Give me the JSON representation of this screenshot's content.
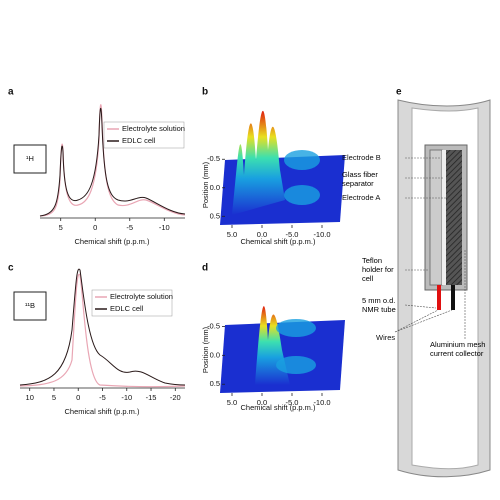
{
  "panels": {
    "a": {
      "label": "a",
      "nucleus": "¹H",
      "legend": [
        "Electrolyte solution",
        "EDLC cell"
      ],
      "xlabel": "Chemical shift (p.p.m.)",
      "xlim": [
        8,
        -13
      ],
      "xticks": [
        5,
        0,
        -5,
        -10
      ]
    },
    "b": {
      "label": "b",
      "xlabel": "Chemical shift (p.p.m.)",
      "ylabel": "Position (mm)",
      "xlim": [
        7,
        -13
      ],
      "xticks": [
        {
          "value": 5,
          "label": "5.0"
        },
        {
          "value": 0,
          "label": "0.0"
        },
        {
          "value": -5,
          "label": "-5.0"
        },
        {
          "value": -10,
          "label": "-10.0"
        }
      ],
      "ylim": [
        -0.75,
        0.6
      ],
      "yticks": [
        -0.5,
        {
          "value": 0,
          "label": "0.0"
        },
        0.5
      ]
    },
    "c": {
      "label": "c",
      "nucleus": "¹¹B",
      "legend": [
        "Electrolyte solution",
        "EDLC cell"
      ],
      "xlabel": "Chemical shift (p.p.m.)",
      "xlim": [
        12,
        -22
      ],
      "xticks": [
        10,
        5,
        0,
        -5,
        -10,
        -15,
        -20
      ]
    },
    "d": {
      "label": "d",
      "xlabel": "Chemical shift (p.p.m.)",
      "ylabel": "Position (mm)",
      "xlim": [
        7,
        -13
      ],
      "xticks": [
        {
          "value": 5,
          "label": "5.0"
        },
        {
          "value": 0,
          "label": "0.0"
        },
        {
          "value": -5,
          "label": "-5.0"
        },
        {
          "value": -10,
          "label": "-10.0"
        }
      ],
      "ylim": [
        -0.75,
        0.6
      ],
      "yticks": [
        -0.5,
        {
          "value": 0,
          "label": "0.0"
        },
        0.5
      ]
    },
    "e": {
      "label": "e",
      "labels": [
        "Electrode B",
        "Glass fiber separator",
        "Electrode A",
        "Teflon holder for cell",
        "5 mm o.d. NMR tube",
        "Wires",
        "Aluminium mesh current collector"
      ]
    }
  }
}
